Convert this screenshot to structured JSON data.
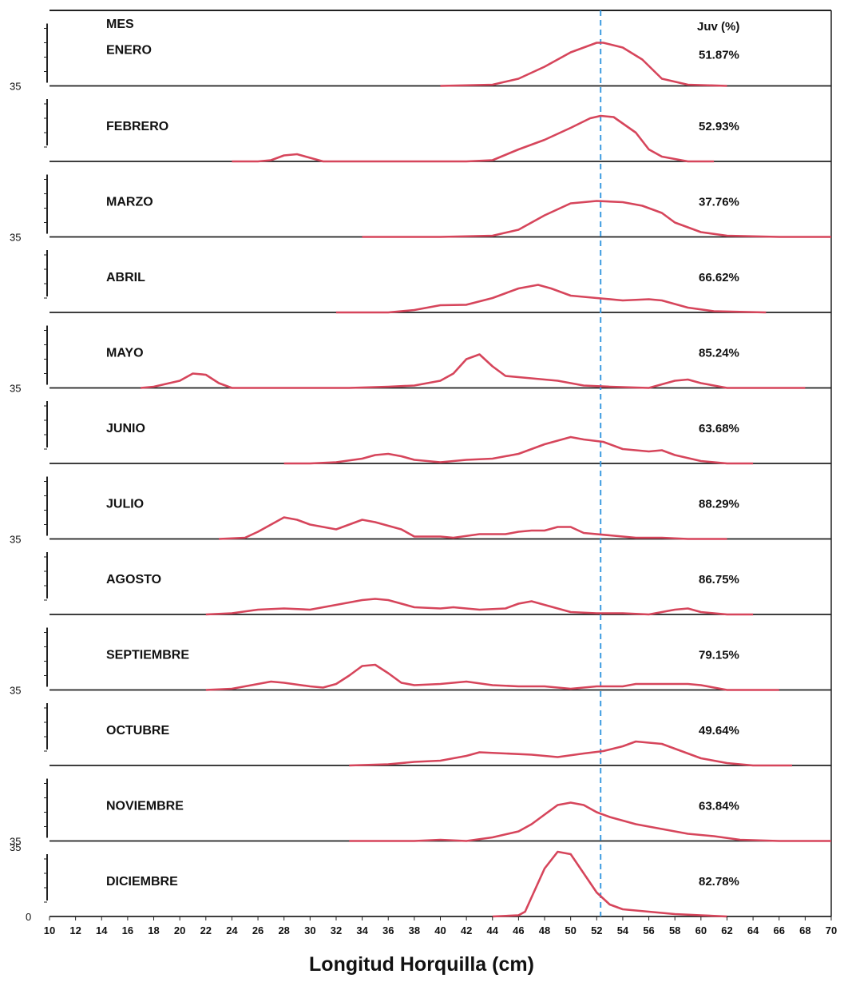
{
  "chart_data": {
    "type": "line",
    "title": "",
    "xlabel": "Longitud Horquilla (cm)",
    "ylabel": "",
    "header_month": "MES",
    "header_juv": "Juv (%)",
    "xlim": [
      10,
      70
    ],
    "x_ticks": [
      "10",
      "12",
      "14",
      "16",
      "18",
      "20",
      "22",
      "24",
      "26",
      "28",
      "30",
      "32",
      "34",
      "36",
      "38",
      "40",
      "42",
      "44",
      "46",
      "48",
      "50",
      "52",
      "54",
      "56",
      "58",
      "60",
      "62",
      "64",
      "66",
      "68",
      "70"
    ],
    "ylim": [
      0,
      35
    ],
    "y_tick_label_top": "35",
    "y_tick_label_zero": "0",
    "reference_line_x": 52.3,
    "line_color": "#d6455b",
    "reference_color": "#3d9be0",
    "grid": false,
    "panels": [
      {
        "month": "ENERO",
        "juv": "51.87%",
        "points": [
          [
            40,
            0
          ],
          [
            44,
            0.5
          ],
          [
            46,
            3
          ],
          [
            48,
            8
          ],
          [
            50,
            14
          ],
          [
            52,
            18
          ],
          [
            52.5,
            18
          ],
          [
            54,
            16
          ],
          [
            55.5,
            11
          ],
          [
            57,
            3
          ],
          [
            59,
            0.5
          ],
          [
            62,
            0
          ]
        ]
      },
      {
        "month": "FEBRERO",
        "juv": "52.93%",
        "points": [
          [
            24,
            0
          ],
          [
            26,
            0
          ],
          [
            27,
            0.5
          ],
          [
            28,
            2.5
          ],
          [
            29,
            3
          ],
          [
            30,
            1.5
          ],
          [
            31,
            0
          ],
          [
            34,
            0
          ],
          [
            38,
            0
          ],
          [
            42,
            0
          ],
          [
            44,
            0.5
          ],
          [
            46,
            5
          ],
          [
            48,
            9
          ],
          [
            50,
            14
          ],
          [
            51.5,
            18
          ],
          [
            52.3,
            19
          ],
          [
            53.3,
            18.5
          ],
          [
            55,
            12
          ],
          [
            56,
            5
          ],
          [
            57,
            2
          ],
          [
            59,
            0
          ],
          [
            61,
            0
          ]
        ]
      },
      {
        "month": "MARZO",
        "juv": "37.76%",
        "points": [
          [
            34,
            0
          ],
          [
            40,
            0
          ],
          [
            44,
            0.5
          ],
          [
            46,
            3
          ],
          [
            48,
            9
          ],
          [
            50,
            14
          ],
          [
            52,
            15
          ],
          [
            54,
            14.5
          ],
          [
            55.5,
            13
          ],
          [
            57,
            10
          ],
          [
            58,
            6
          ],
          [
            60,
            2
          ],
          [
            62,
            0.5
          ],
          [
            66,
            0
          ],
          [
            70,
            0
          ]
        ]
      },
      {
        "month": "ABRIL",
        "juv": "66.62%",
        "points": [
          [
            32,
            0
          ],
          [
            36,
            0
          ],
          [
            38,
            1
          ],
          [
            40,
            3
          ],
          [
            42,
            3.2
          ],
          [
            44,
            6
          ],
          [
            46,
            10
          ],
          [
            47.5,
            11.5
          ],
          [
            48.5,
            10
          ],
          [
            50,
            7
          ],
          [
            52,
            6
          ],
          [
            54,
            5
          ],
          [
            56,
            5.5
          ],
          [
            57,
            5
          ],
          [
            59,
            2
          ],
          [
            61,
            0.5
          ],
          [
            65,
            0
          ]
        ]
      },
      {
        "month": "MAYO",
        "juv": "85.24%",
        "points": [
          [
            17,
            0
          ],
          [
            18,
            0.5
          ],
          [
            20,
            3
          ],
          [
            21,
            6
          ],
          [
            22,
            5.5
          ],
          [
            23,
            2
          ],
          [
            24,
            0
          ],
          [
            26,
            0
          ],
          [
            30,
            0
          ],
          [
            33,
            0
          ],
          [
            36,
            0.5
          ],
          [
            38,
            1
          ],
          [
            40,
            3
          ],
          [
            41,
            6
          ],
          [
            42,
            12
          ],
          [
            43,
            14
          ],
          [
            44,
            9
          ],
          [
            45,
            5
          ],
          [
            47,
            4
          ],
          [
            49,
            3
          ],
          [
            51,
            1
          ],
          [
            53,
            0.5
          ],
          [
            56,
            0
          ],
          [
            58,
            3
          ],
          [
            59,
            3.5
          ],
          [
            60,
            2
          ],
          [
            62,
            0
          ],
          [
            66,
            0
          ],
          [
            68,
            0
          ]
        ]
      },
      {
        "month": "JUNIO",
        "juv": "63.68%",
        "points": [
          [
            28,
            0
          ],
          [
            30,
            0
          ],
          [
            32,
            0.5
          ],
          [
            34,
            2
          ],
          [
            35,
            3.5
          ],
          [
            36,
            4
          ],
          [
            37,
            3
          ],
          [
            38,
            1.5
          ],
          [
            40,
            0.5
          ],
          [
            42,
            1.5
          ],
          [
            44,
            2
          ],
          [
            46,
            4
          ],
          [
            48,
            8
          ],
          [
            50,
            11
          ],
          [
            51,
            10
          ],
          [
            52.5,
            9
          ],
          [
            54,
            6
          ],
          [
            56,
            5
          ],
          [
            57,
            5.5
          ],
          [
            58,
            3.5
          ],
          [
            60,
            1
          ],
          [
            62,
            0
          ],
          [
            64,
            0
          ]
        ]
      },
      {
        "month": "JULIO",
        "juv": "88.29%",
        "points": [
          [
            23,
            0
          ],
          [
            25,
            0.5
          ],
          [
            26,
            3
          ],
          [
            28,
            9
          ],
          [
            29,
            8
          ],
          [
            30,
            6
          ],
          [
            32,
            4
          ],
          [
            33,
            6
          ],
          [
            34,
            8
          ],
          [
            35,
            7
          ],
          [
            37,
            4
          ],
          [
            38,
            1
          ],
          [
            40,
            1
          ],
          [
            41,
            0.5
          ],
          [
            43,
            2
          ],
          [
            45,
            2
          ],
          [
            46,
            3
          ],
          [
            47,
            3.5
          ],
          [
            48,
            3.5
          ],
          [
            49,
            5
          ],
          [
            50,
            5
          ],
          [
            51,
            2.5
          ],
          [
            53,
            1.5
          ],
          [
            55,
            0.5
          ],
          [
            57,
            0.5
          ],
          [
            59,
            0
          ],
          [
            62,
            0
          ]
        ]
      },
      {
        "month": "AGOSTO",
        "juv": "86.75%",
        "points": [
          [
            22,
            0
          ],
          [
            24,
            0.5
          ],
          [
            26,
            2
          ],
          [
            28,
            2.5
          ],
          [
            30,
            2
          ],
          [
            32,
            4
          ],
          [
            34,
            6
          ],
          [
            35,
            6.5
          ],
          [
            36,
            6
          ],
          [
            38,
            3
          ],
          [
            40,
            2.5
          ],
          [
            41,
            3
          ],
          [
            43,
            2
          ],
          [
            45,
            2.5
          ],
          [
            46,
            4.5
          ],
          [
            47,
            5.5
          ],
          [
            48,
            4
          ],
          [
            50,
            1
          ],
          [
            52,
            0.5
          ],
          [
            54,
            0.5
          ],
          [
            56,
            0
          ],
          [
            58,
            2
          ],
          [
            59,
            2.5
          ],
          [
            60,
            1
          ],
          [
            62,
            0
          ],
          [
            64,
            0
          ]
        ]
      },
      {
        "month": "SEPTIEMBRE",
        "juv": "79.15%",
        "points": [
          [
            22,
            0
          ],
          [
            24,
            0.5
          ],
          [
            26,
            2.5
          ],
          [
            27,
            3.5
          ],
          [
            28,
            3
          ],
          [
            30,
            1.5
          ],
          [
            31,
            1
          ],
          [
            32,
            2.5
          ],
          [
            33,
            6
          ],
          [
            34,
            10
          ],
          [
            35,
            10.5
          ],
          [
            36,
            7
          ],
          [
            37,
            3
          ],
          [
            38,
            2
          ],
          [
            40,
            2.5
          ],
          [
            42,
            3.5
          ],
          [
            44,
            2
          ],
          [
            46,
            1.5
          ],
          [
            48,
            1.5
          ],
          [
            50,
            0.5
          ],
          [
            52,
            1.5
          ],
          [
            54,
            1.5
          ],
          [
            55,
            2.5
          ],
          [
            57,
            2.5
          ],
          [
            59,
            2.5
          ],
          [
            60,
            2
          ],
          [
            62,
            0
          ],
          [
            66,
            0
          ]
        ]
      },
      {
        "month": "OCTUBRE",
        "juv": "49.64%",
        "points": [
          [
            33,
            0
          ],
          [
            36,
            0.5
          ],
          [
            38,
            1.5
          ],
          [
            40,
            2
          ],
          [
            42,
            4
          ],
          [
            43,
            5.5
          ],
          [
            45,
            5
          ],
          [
            47,
            4.5
          ],
          [
            49,
            3.5
          ],
          [
            51,
            5
          ],
          [
            52.5,
            6
          ],
          [
            54,
            8
          ],
          [
            55,
            10
          ],
          [
            57,
            9
          ],
          [
            58,
            7
          ],
          [
            60,
            3
          ],
          [
            62,
            1
          ],
          [
            64,
            0
          ],
          [
            67,
            0
          ]
        ]
      },
      {
        "month": "NOVIEMBRE",
        "juv": "63.84%",
        "points": [
          [
            33,
            0
          ],
          [
            38,
            0
          ],
          [
            40,
            0.5
          ],
          [
            42,
            0
          ],
          [
            44,
            1.5
          ],
          [
            46,
            4
          ],
          [
            47,
            7
          ],
          [
            48,
            11
          ],
          [
            49,
            15
          ],
          [
            50,
            16
          ],
          [
            51,
            15
          ],
          [
            52,
            12
          ],
          [
            53,
            10
          ],
          [
            55,
            7
          ],
          [
            57,
            5
          ],
          [
            59,
            3
          ],
          [
            61,
            2
          ],
          [
            63,
            0.5
          ],
          [
            66,
            0
          ],
          [
            70,
            0
          ]
        ]
      },
      {
        "month": "DICIEMBRE",
        "juv": "82.78%",
        "points": [
          [
            44,
            0
          ],
          [
            46,
            0.5
          ],
          [
            46.5,
            2
          ],
          [
            47,
            8
          ],
          [
            48,
            20
          ],
          [
            49,
            27
          ],
          [
            50,
            26
          ],
          [
            51,
            18
          ],
          [
            52,
            10
          ],
          [
            53,
            5
          ],
          [
            54,
            3
          ],
          [
            56,
            2
          ],
          [
            58,
            1
          ],
          [
            60,
            0.5
          ],
          [
            62,
            0
          ]
        ]
      }
    ]
  }
}
